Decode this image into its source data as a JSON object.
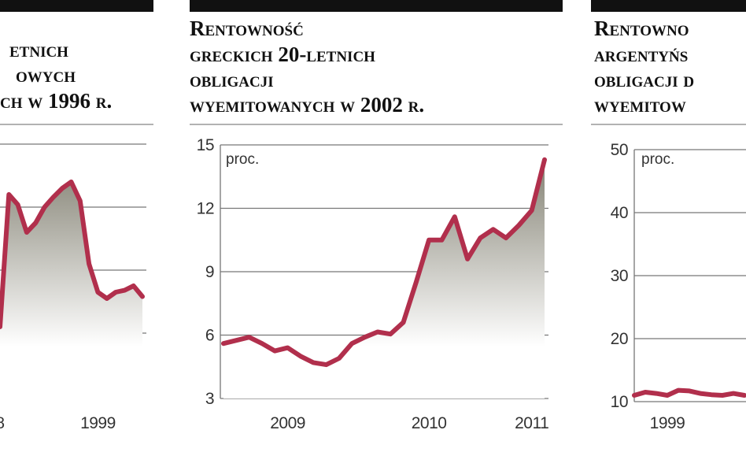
{
  "chart_data": [
    {
      "type": "line",
      "title": [
        "etnich",
        "owych",
        "ch w 1996 r."
      ],
      "categories": [
        "8",
        null,
        null,
        null,
        null,
        null,
        null,
        null,
        null,
        null,
        null,
        "1999",
        null,
        null,
        null,
        null,
        null
      ],
      "values": [
        11,
        32,
        30.4,
        26,
        27.5,
        30,
        31.6,
        33,
        34,
        31,
        21,
        16.5,
        15.5,
        16.5,
        16.8,
        17.5,
        15.8
      ],
      "color": "#b12f4c",
      "ylim": [
        0,
        40
      ],
      "ygrid": [
        10,
        20,
        30,
        40
      ],
      "grid": true,
      "area": true
    },
    {
      "type": "line",
      "title": [
        "Rentowność",
        "greckich 20-letnich",
        "obligacji",
        "wyemitowanych w 2002 r."
      ],
      "unit_label": "proc.",
      "categories": [
        null,
        null,
        null,
        null,
        null,
        "2009",
        null,
        null,
        null,
        null,
        null,
        null,
        null,
        null,
        null,
        null,
        "2010",
        null,
        null,
        null,
        null,
        null,
        null,
        null,
        "2011",
        null
      ],
      "values": [
        5.6,
        5.75,
        5.9,
        5.6,
        5.25,
        5.4,
        5.0,
        4.7,
        4.6,
        4.9,
        5.6,
        5.9,
        6.15,
        6.05,
        6.6,
        8.5,
        10.5,
        10.5,
        11.6,
        9.6,
        10.6,
        11.0,
        10.6,
        11.2,
        11.9,
        14.3
      ],
      "color": "#b12f4c",
      "ylim": [
        3,
        15
      ],
      "yticks": [
        3,
        6,
        9,
        12,
        15
      ],
      "grid": true,
      "area": true
    },
    {
      "type": "line",
      "title": [
        "Rentowno",
        "argentyńs",
        "obligacji d",
        "wyemitow"
      ],
      "unit_label": "proc.",
      "categories": [
        null,
        null,
        null,
        "1999",
        null,
        null,
        null,
        null,
        null,
        null,
        null
      ],
      "values": [
        11.0,
        11.5,
        11.3,
        11.0,
        11.8,
        11.7,
        11.3,
        11.1,
        11.0,
        11.3,
        11.0
      ],
      "color": "#b12f4c",
      "ylim": [
        10,
        50
      ],
      "yticks": [
        10,
        20,
        30,
        40,
        50
      ],
      "grid": true,
      "area": false
    }
  ]
}
